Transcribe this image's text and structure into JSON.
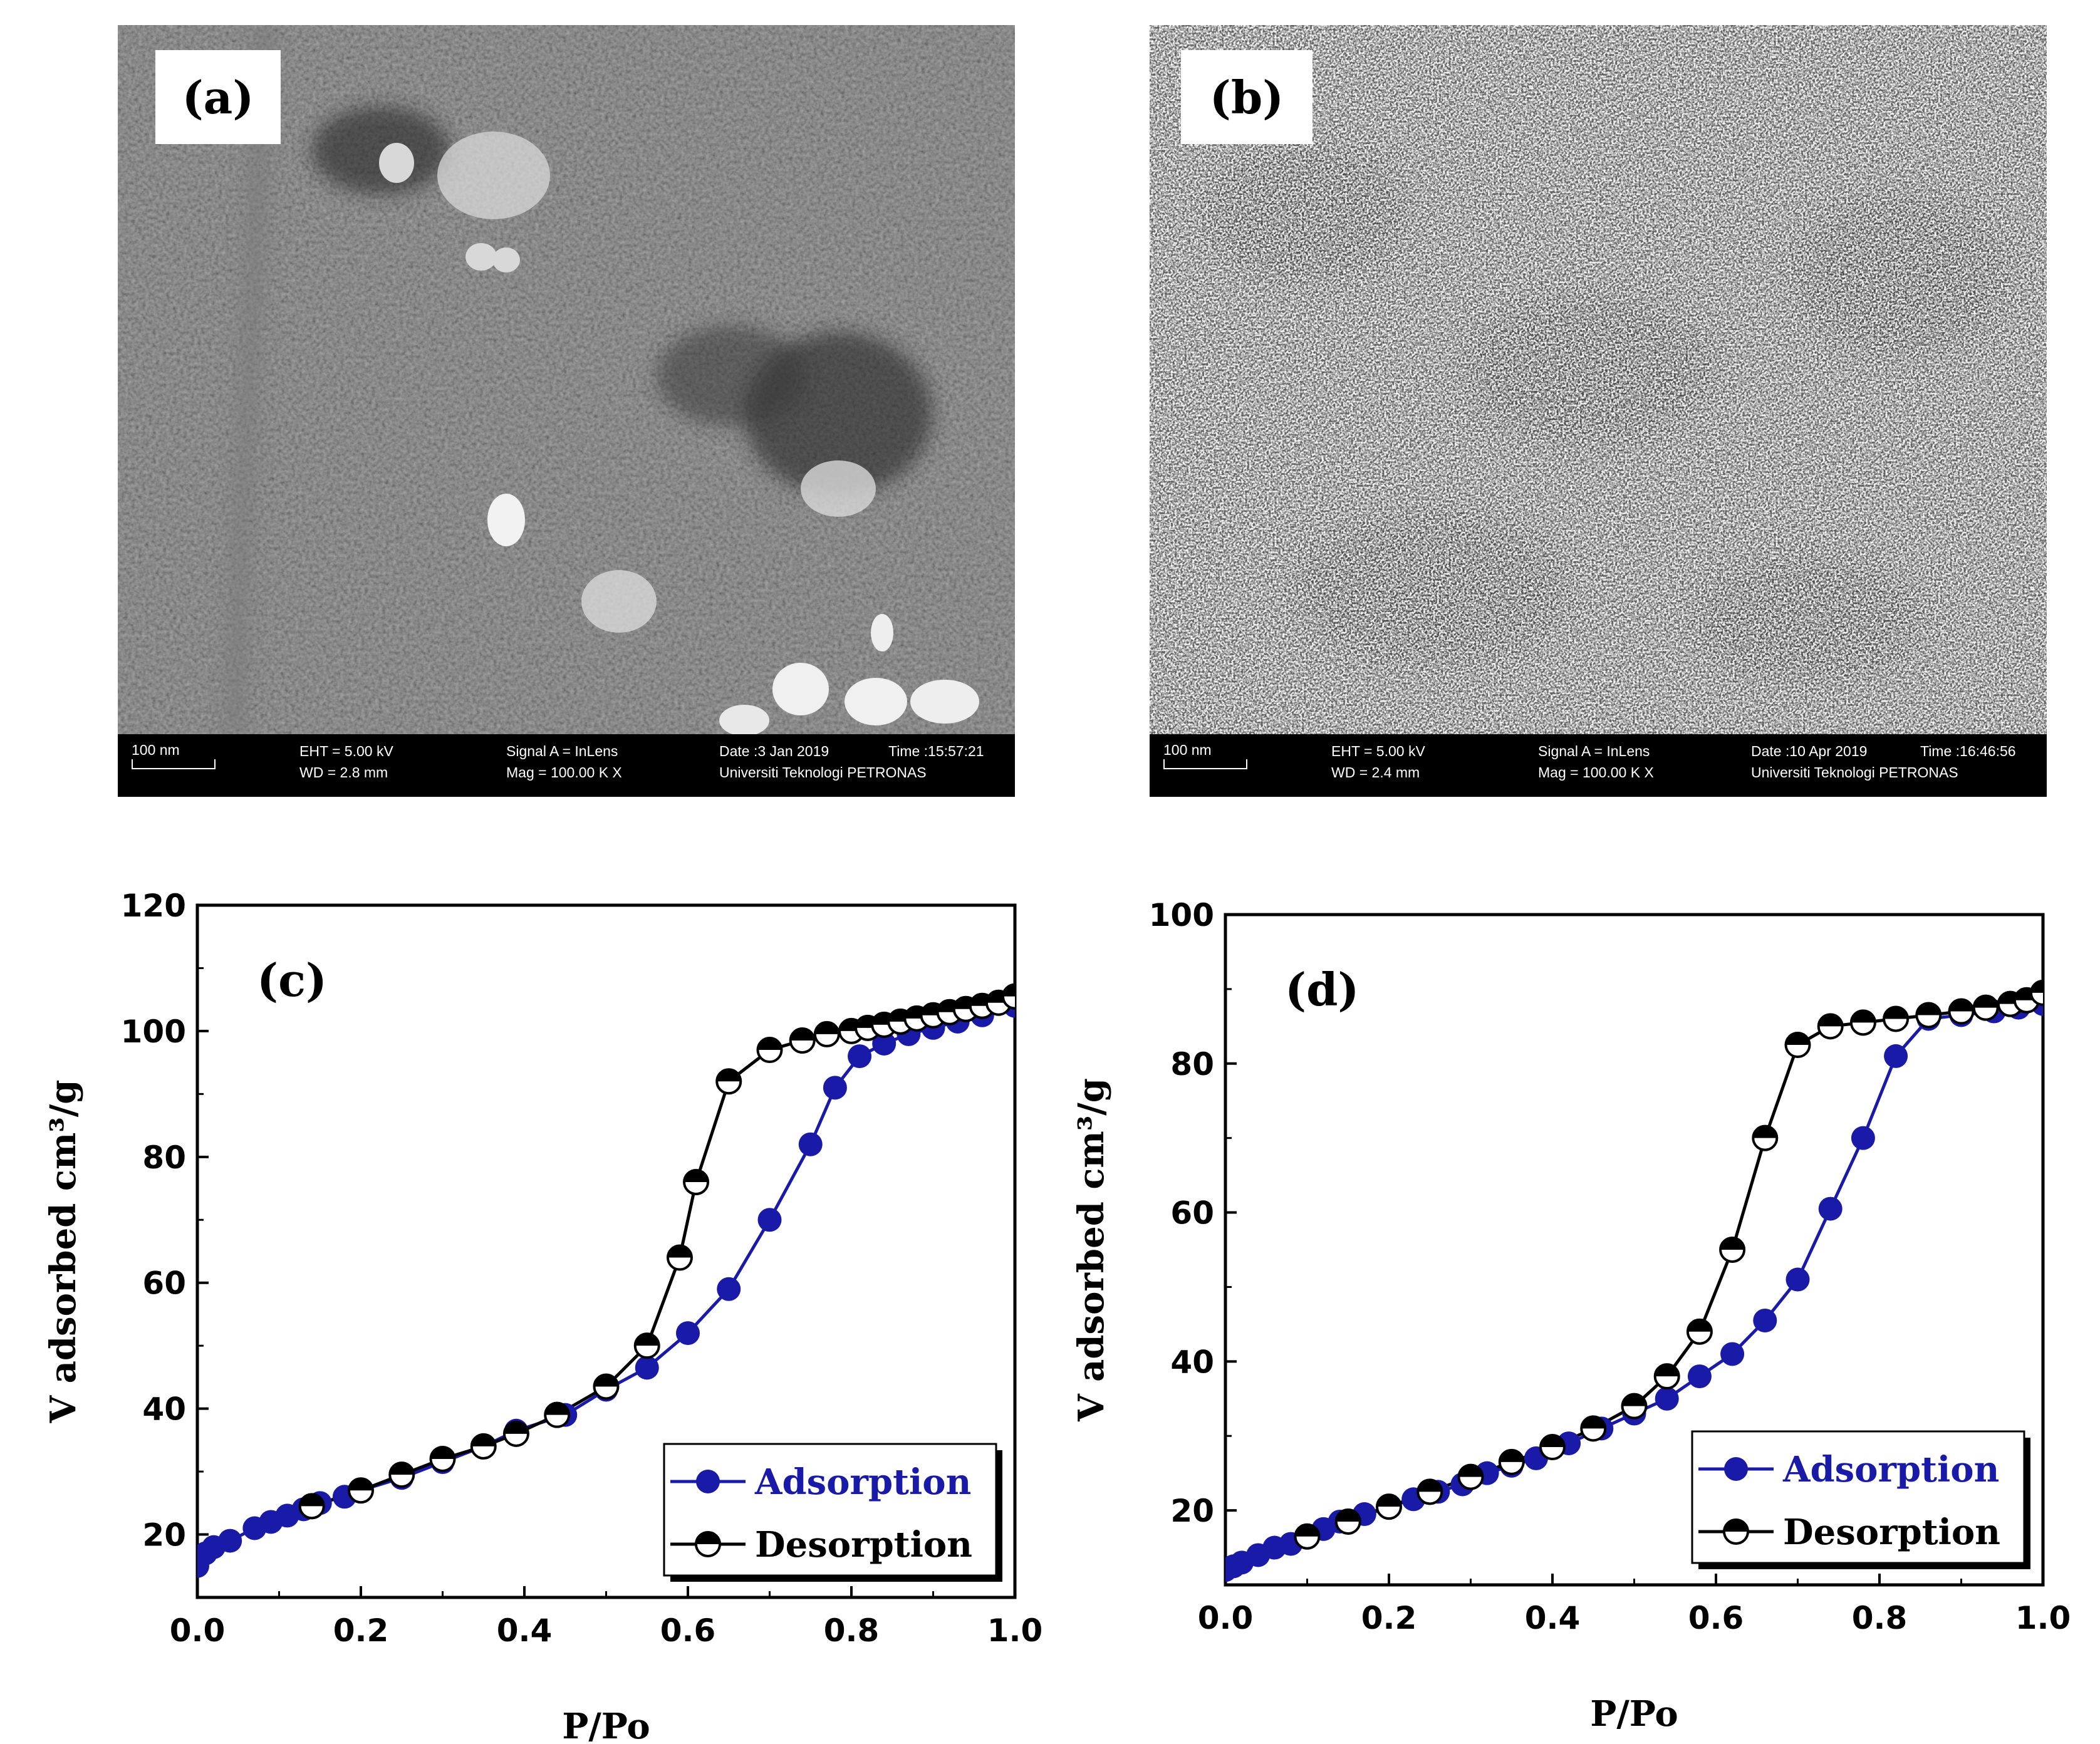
{
  "panels": {
    "a": {
      "label": "(a)",
      "scale": "100 nm",
      "eht": "EHT =  5.00 kV",
      "wd": "WD =  2.8 mm",
      "signal": "Signal A = InLens",
      "mag": "Mag = 100.00 K X",
      "date": "Date :3 Jan 2019",
      "time": "Time :15:57:21",
      "org": "Universiti Teknologi PETRONAS"
    },
    "b": {
      "label": "(b)",
      "scale": "100 nm",
      "eht": "EHT =  5.00 kV",
      "wd": "WD =  2.4 mm",
      "signal": "Signal A = InLens",
      "mag": "Mag = 100.00 K X",
      "date": "Date :10 Apr 2019",
      "time": "Time :16:46:56",
      "org": "Universiti Teknologi PETRONAS"
    }
  },
  "colors": {
    "adsorption": "#1a1aa8",
    "desorption": "#000000"
  },
  "chart_data": [
    {
      "type": "line",
      "panel_label": "(c)",
      "xlabel": "P/Po",
      "ylabel": "V adsorbed cm³/g",
      "xlim": [
        0,
        1.0
      ],
      "ylim": [
        10,
        120
      ],
      "xticks": [
        "0.0",
        "0.2",
        "0.4",
        "0.6",
        "0.8",
        "1.0"
      ],
      "yticks": [
        "20",
        "40",
        "60",
        "80",
        "100",
        "120"
      ],
      "ytick_values": [
        20,
        40,
        60,
        80,
        100,
        120
      ],
      "legend": "bottom-right",
      "series": [
        {
          "name": "Adsorption",
          "x": [
            0.0,
            0.01,
            0.02,
            0.04,
            0.07,
            0.09,
            0.11,
            0.13,
            0.15,
            0.18,
            0.2,
            0.25,
            0.3,
            0.35,
            0.39,
            0.45,
            0.5,
            0.55,
            0.6,
            0.65,
            0.7,
            0.75,
            0.78,
            0.81,
            0.84,
            0.87,
            0.9,
            0.93,
            0.96,
            1.0
          ],
          "y": [
            15,
            17,
            18,
            19,
            21,
            22,
            23,
            24,
            25,
            26,
            27,
            29,
            31.5,
            34,
            36.5,
            39,
            43,
            46.5,
            52,
            59,
            70,
            82,
            91,
            96,
            98,
            99.5,
            100.5,
            101.5,
            102.5,
            104
          ]
        },
        {
          "name": "Desorption",
          "x": [
            0.14,
            0.2,
            0.25,
            0.3,
            0.35,
            0.39,
            0.44,
            0.5,
            0.55,
            0.59,
            0.61,
            0.65,
            0.7,
            0.74,
            0.77,
            0.8,
            0.82,
            0.84,
            0.86,
            0.88,
            0.9,
            0.92,
            0.94,
            0.96,
            0.98,
            1.0
          ],
          "y": [
            24.5,
            27,
            29.5,
            32,
            34,
            36,
            39,
            43.5,
            50,
            64,
            76,
            92,
            97,
            98.5,
            99.5,
            100,
            100.5,
            101,
            101.5,
            102,
            102.5,
            103,
            103.5,
            104,
            104.5,
            105.5
          ]
        }
      ]
    },
    {
      "type": "line",
      "panel_label": "(d)",
      "xlabel": "P/Po",
      "ylabel": "V adsorbed cm³/g",
      "xlim": [
        0,
        1.0
      ],
      "ylim": [
        10,
        100
      ],
      "xticks": [
        "0.0",
        "0.2",
        "0.4",
        "0.6",
        "0.8",
        "1.0"
      ],
      "yticks": [
        "20",
        "40",
        "60",
        "80",
        "100"
      ],
      "ytick_values": [
        20,
        40,
        60,
        80,
        100
      ],
      "legend": "bottom-right",
      "series": [
        {
          "name": "Adsorption",
          "x": [
            0.0,
            0.01,
            0.02,
            0.04,
            0.06,
            0.08,
            0.1,
            0.12,
            0.14,
            0.17,
            0.2,
            0.23,
            0.26,
            0.29,
            0.32,
            0.35,
            0.38,
            0.42,
            0.46,
            0.5,
            0.54,
            0.58,
            0.62,
            0.66,
            0.7,
            0.74,
            0.78,
            0.82,
            0.86,
            0.9,
            0.94,
            0.97,
            1.0
          ],
          "y": [
            12,
            12.5,
            13,
            14,
            15,
            15.5,
            16.5,
            17.5,
            18.5,
            19.5,
            20.5,
            21.5,
            22.5,
            23.5,
            25,
            26,
            27,
            29,
            31,
            33,
            35,
            38,
            41,
            45.5,
            51,
            60.5,
            70,
            81,
            86,
            86.5,
            87,
            87.5,
            88
          ]
        },
        {
          "name": "Desorption",
          "x": [
            0.1,
            0.15,
            0.2,
            0.25,
            0.3,
            0.35,
            0.4,
            0.45,
            0.5,
            0.54,
            0.58,
            0.62,
            0.66,
            0.7,
            0.74,
            0.78,
            0.82,
            0.86,
            0.9,
            0.93,
            0.96,
            0.98,
            1.0
          ],
          "y": [
            16.5,
            18.5,
            20.5,
            22.5,
            24.5,
            26.5,
            28.5,
            31,
            34,
            38,
            44,
            55,
            70,
            82.5,
            85,
            85.5,
            86,
            86.5,
            87,
            87.5,
            88,
            88.5,
            89.5
          ]
        }
      ]
    }
  ]
}
